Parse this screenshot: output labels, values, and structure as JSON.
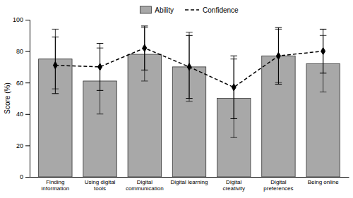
{
  "chart_data": {
    "type": "bar",
    "categories": [
      "Finding\ninformation",
      "Using digital\ntools",
      "Digital\ncommunication",
      "Digital learning",
      "Digital\ncreativity",
      "Digital\npreferences",
      "Being online"
    ],
    "ylabel": "Score (%)",
    "ylim": [
      0,
      100
    ],
    "yticks": [
      0,
      20,
      40,
      60,
      80,
      100
    ],
    "grid": false,
    "legend": "upper center",
    "series": [
      {
        "name": "Ability",
        "type": "bar",
        "color": "#a8a8a8",
        "values": [
          75,
          61,
          78,
          70,
          50,
          77,
          72
        ],
        "errors": [
          19,
          21,
          17,
          22,
          25,
          17,
          18
        ]
      },
      {
        "name": "Confidence",
        "type": "line",
        "color": "#000000",
        "marker": "diamond",
        "line_style": "dashed",
        "values": [
          71,
          70,
          82,
          70,
          57,
          77,
          80
        ],
        "errors": [
          18,
          15,
          14,
          20,
          20,
          18,
          14
        ]
      }
    ]
  }
}
